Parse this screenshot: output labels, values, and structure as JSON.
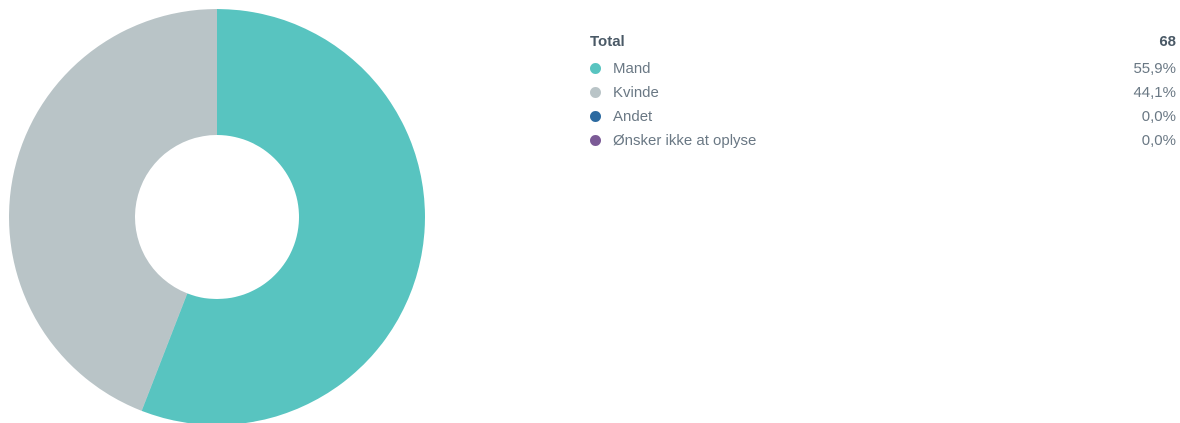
{
  "chart_data": {
    "type": "pie",
    "donut": true,
    "total_label": "Total",
    "total_value": "68",
    "series": [
      {
        "name": "Mand",
        "value": 55.9,
        "display": "55,9%",
        "color": "#58c4c0"
      },
      {
        "name": "Kvinde",
        "value": 44.1,
        "display": "44,1%",
        "color": "#b9c4c7"
      },
      {
        "name": "Andet",
        "value": 0.0,
        "display": "0,0%",
        "color": "#2c6aa0"
      },
      {
        "name": "Ønsker ikke at oplyse",
        "value": 0.0,
        "display": "0,0%",
        "color": "#7b5a96"
      }
    ],
    "legend_position": "right"
  }
}
